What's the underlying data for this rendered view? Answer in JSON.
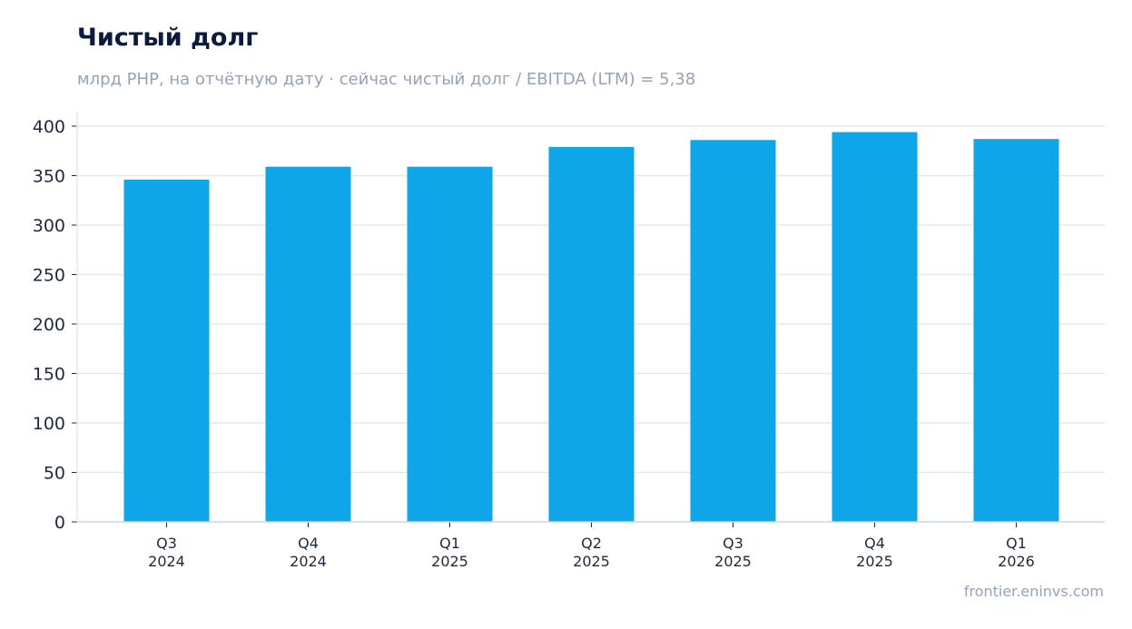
{
  "title": "Чистый долг",
  "subtitle": "млрд PHP, на отчётную дату · сейчас чистый долг / EBITDA (LTM) = 5,38",
  "credit": "frontier.eninvs.com",
  "colors": {
    "bar": "#0fa5e9",
    "grid": "#e2e8f0",
    "axis": "#cbd5e1",
    "title": "#0b1a3f",
    "muted": "#94a3b8"
  },
  "chart_data": {
    "type": "bar",
    "categories": [
      [
        "Q3",
        "2024"
      ],
      [
        "Q4",
        "2024"
      ],
      [
        "Q1",
        "2025"
      ],
      [
        "Q2",
        "2025"
      ],
      [
        "Q3",
        "2025"
      ],
      [
        "Q4",
        "2025"
      ],
      [
        "Q1",
        "2026"
      ]
    ],
    "values": [
      346,
      359,
      359,
      379,
      386,
      394,
      387
    ],
    "ylim": [
      0,
      400
    ],
    "yticks": [
      0,
      50,
      100,
      150,
      200,
      250,
      300,
      350,
      400
    ],
    "grid": true,
    "legend": "none"
  }
}
